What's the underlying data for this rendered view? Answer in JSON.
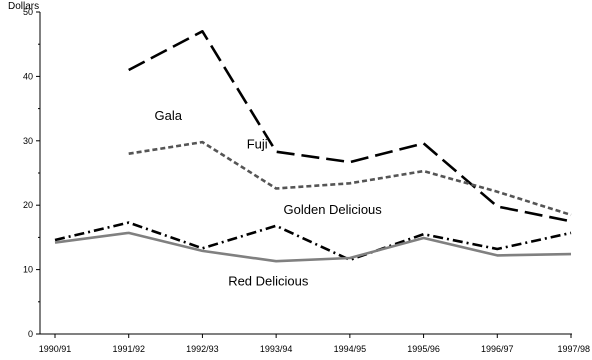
{
  "chart_data": {
    "type": "line",
    "title": "",
    "xlabel": "",
    "ylabel": "",
    "y_unit_label": "Dollars",
    "ylim": [
      0,
      50
    ],
    "yticks": [
      0,
      10,
      20,
      30,
      40,
      50
    ],
    "grid": false,
    "legend": "inline labels",
    "categories": [
      "1990/91",
      "1991/92",
      "1992/93",
      "1993/94",
      "1994/95",
      "1995/96",
      "1996/97",
      "1997/98"
    ],
    "series": [
      {
        "name": "Fuji",
        "values": [
          null,
          41,
          47,
          28.3,
          26.7,
          29.6,
          19.8,
          17.5
        ],
        "color": "#000000",
        "dash": "long-dash"
      },
      {
        "name": "Gala",
        "values": [
          null,
          28,
          29.8,
          22.6,
          23.4,
          25.3,
          22.1,
          18.5
        ],
        "color": "#555555",
        "dash": "short-dash"
      },
      {
        "name": "Golden Delicious",
        "values": [
          14.6,
          17.3,
          13.3,
          16.8,
          11.5,
          15.5,
          13.2,
          15.7
        ],
        "color": "#000000",
        "dash": "dash-dot"
      },
      {
        "name": "Red Delicious",
        "values": [
          14.2,
          15.7,
          12.9,
          11.3,
          11.8,
          14.9,
          12.2,
          12.4
        ],
        "color": "#808080",
        "dash": "solid"
      }
    ]
  }
}
